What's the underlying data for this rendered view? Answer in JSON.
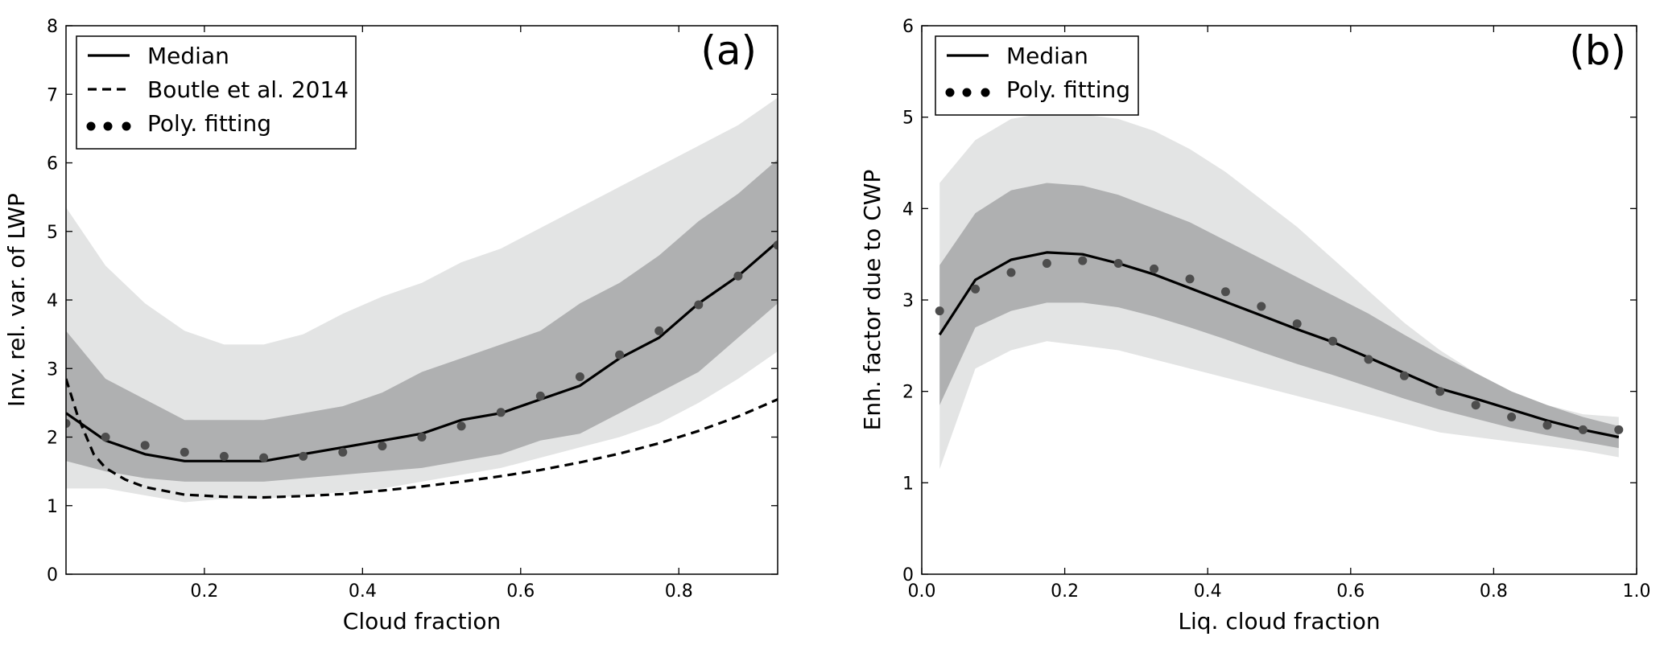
{
  "chart_data": [
    {
      "type": "line",
      "panel_label": "(a)",
      "xlabel": "Cloud fraction",
      "ylabel": "Inv. rel. var. of LWP",
      "xlim": [
        0.025,
        0.925
      ],
      "ylim": [
        0,
        8
      ],
      "xticks": [
        0.2,
        0.4,
        0.6,
        0.8
      ],
      "xtick_labels": [
        "0.2",
        "0.4",
        "0.6",
        "0.8"
      ],
      "yticks": [
        0,
        1,
        2,
        3,
        4,
        5,
        6,
        7,
        8
      ],
      "ytick_labels": [
        "0",
        "1",
        "2",
        "3",
        "4",
        "5",
        "6",
        "7",
        "8"
      ],
      "grid": false,
      "legend_position": "upper-left",
      "legend": [
        "Median",
        "Boutle et al. 2014",
        "Poly. fitting"
      ],
      "bands": [
        {
          "color": "#e3e4e4",
          "x": [
            0.025,
            0.075,
            0.125,
            0.175,
            0.225,
            0.275,
            0.325,
            0.375,
            0.425,
            0.475,
            0.525,
            0.575,
            0.625,
            0.675,
            0.725,
            0.775,
            0.825,
            0.875,
            0.925
          ],
          "lower": [
            1.25,
            1.25,
            1.15,
            1.05,
            1.1,
            1.1,
            1.15,
            1.2,
            1.25,
            1.35,
            1.45,
            1.55,
            1.7,
            1.85,
            2.0,
            2.2,
            2.5,
            2.85,
            3.25
          ],
          "upper": [
            5.35,
            4.5,
            3.95,
            3.55,
            3.35,
            3.35,
            3.5,
            3.8,
            4.05,
            4.25,
            4.55,
            4.75,
            5.05,
            5.35,
            5.65,
            5.95,
            6.25,
            6.55,
            6.95
          ]
        },
        {
          "color": "#afb0b1",
          "x": [
            0.025,
            0.075,
            0.125,
            0.175,
            0.225,
            0.275,
            0.325,
            0.375,
            0.425,
            0.475,
            0.525,
            0.575,
            0.625,
            0.675,
            0.725,
            0.775,
            0.825,
            0.875,
            0.925
          ],
          "lower": [
            1.65,
            1.5,
            1.4,
            1.35,
            1.35,
            1.35,
            1.4,
            1.45,
            1.5,
            1.55,
            1.65,
            1.75,
            1.95,
            2.05,
            2.35,
            2.65,
            2.95,
            3.45,
            3.95
          ],
          "upper": [
            3.55,
            2.85,
            2.55,
            2.25,
            2.25,
            2.25,
            2.35,
            2.45,
            2.65,
            2.95,
            3.15,
            3.35,
            3.55,
            3.95,
            4.25,
            4.65,
            5.15,
            5.55,
            6.05
          ]
        }
      ],
      "series": [
        {
          "name": "Median",
          "style": "solid",
          "x": [
            0.025,
            0.075,
            0.125,
            0.175,
            0.225,
            0.275,
            0.325,
            0.375,
            0.425,
            0.475,
            0.525,
            0.575,
            0.625,
            0.675,
            0.725,
            0.775,
            0.825,
            0.875,
            0.925
          ],
          "y": [
            2.35,
            1.95,
            1.75,
            1.65,
            1.65,
            1.65,
            1.75,
            1.85,
            1.95,
            2.05,
            2.25,
            2.35,
            2.55,
            2.75,
            3.15,
            3.45,
            3.95,
            4.35,
            4.85
          ]
        },
        {
          "name": "Boutle et al. 2014",
          "style": "dashed",
          "x": [
            0.025,
            0.04,
            0.06,
            0.075,
            0.1,
            0.125,
            0.175,
            0.225,
            0.275,
            0.325,
            0.375,
            0.425,
            0.475,
            0.525,
            0.575,
            0.625,
            0.675,
            0.725,
            0.775,
            0.825,
            0.875,
            0.925
          ],
          "y": [
            2.85,
            2.3,
            1.75,
            1.55,
            1.38,
            1.27,
            1.16,
            1.13,
            1.12,
            1.14,
            1.17,
            1.22,
            1.28,
            1.35,
            1.43,
            1.52,
            1.63,
            1.76,
            1.91,
            2.09,
            2.3,
            2.55
          ]
        },
        {
          "name": "Poly. fitting",
          "style": "dots",
          "color": "#4d4d4d",
          "x": [
            0.025,
            0.075,
            0.125,
            0.175,
            0.225,
            0.275,
            0.325,
            0.375,
            0.425,
            0.475,
            0.525,
            0.575,
            0.625,
            0.675,
            0.725,
            0.775,
            0.825,
            0.875,
            0.925
          ],
          "y": [
            2.2,
            2.0,
            1.88,
            1.78,
            1.72,
            1.7,
            1.72,
            1.78,
            1.87,
            2.0,
            2.16,
            2.36,
            2.6,
            2.88,
            3.2,
            3.55,
            3.93,
            4.35,
            4.8
          ]
        }
      ]
    },
    {
      "type": "line",
      "panel_label": "(b)",
      "xlabel": "Liq. cloud fraction",
      "ylabel": "Enh. factor due to CWP",
      "xlim": [
        0,
        1
      ],
      "ylim": [
        0,
        6
      ],
      "xticks": [
        0,
        0.2,
        0.4,
        0.6,
        0.8,
        1.0
      ],
      "xtick_labels": [
        "0.0",
        "0.2",
        "0.4",
        "0.6",
        "0.8",
        "1.0"
      ],
      "yticks": [
        0,
        1,
        2,
        3,
        4,
        5,
        6
      ],
      "ytick_labels": [
        "0",
        "1",
        "2",
        "3",
        "4",
        "5",
        "6"
      ],
      "grid": false,
      "legend_position": "upper-left",
      "legend": [
        "Median",
        "Poly. fitting"
      ],
      "bands": [
        {
          "color": "#e3e4e4",
          "x": [
            0.025,
            0.075,
            0.125,
            0.175,
            0.225,
            0.275,
            0.325,
            0.375,
            0.425,
            0.475,
            0.525,
            0.575,
            0.625,
            0.675,
            0.725,
            0.775,
            0.825,
            0.875,
            0.925,
            0.975
          ],
          "lower": [
            1.15,
            2.25,
            2.45,
            2.55,
            2.5,
            2.45,
            2.35,
            2.25,
            2.15,
            2.05,
            1.95,
            1.85,
            1.75,
            1.65,
            1.55,
            1.5,
            1.45,
            1.4,
            1.35,
            1.28
          ],
          "upper": [
            4.28,
            4.75,
            4.98,
            5.05,
            5.03,
            4.98,
            4.85,
            4.65,
            4.4,
            4.1,
            3.8,
            3.45,
            3.1,
            2.75,
            2.45,
            2.2,
            2.0,
            1.85,
            1.75,
            1.72
          ]
        },
        {
          "color": "#afb0b1",
          "x": [
            0.025,
            0.075,
            0.125,
            0.175,
            0.225,
            0.275,
            0.325,
            0.375,
            0.425,
            0.475,
            0.525,
            0.575,
            0.625,
            0.675,
            0.725,
            0.775,
            0.825,
            0.875,
            0.925,
            0.975
          ],
          "lower": [
            1.85,
            2.7,
            2.88,
            2.97,
            2.97,
            2.92,
            2.82,
            2.7,
            2.57,
            2.43,
            2.3,
            2.18,
            2.05,
            1.92,
            1.8,
            1.7,
            1.6,
            1.52,
            1.45,
            1.38
          ],
          "upper": [
            3.38,
            3.95,
            4.2,
            4.28,
            4.25,
            4.15,
            4.0,
            3.85,
            3.65,
            3.45,
            3.25,
            3.05,
            2.85,
            2.62,
            2.4,
            2.2,
            2.0,
            1.85,
            1.72,
            1.62
          ]
        }
      ],
      "series": [
        {
          "name": "Median",
          "style": "solid",
          "x": [
            0.025,
            0.075,
            0.125,
            0.175,
            0.225,
            0.275,
            0.325,
            0.375,
            0.425,
            0.475,
            0.525,
            0.575,
            0.625,
            0.675,
            0.725,
            0.775,
            0.825,
            0.875,
            0.925,
            0.975
          ],
          "y": [
            2.62,
            3.22,
            3.44,
            3.52,
            3.5,
            3.4,
            3.28,
            3.13,
            2.98,
            2.83,
            2.68,
            2.54,
            2.37,
            2.2,
            2.03,
            1.92,
            1.8,
            1.68,
            1.58,
            1.5
          ]
        },
        {
          "name": "Poly. fitting",
          "style": "dots",
          "color": "#4d4d4d",
          "x": [
            0.025,
            0.075,
            0.125,
            0.175,
            0.225,
            0.275,
            0.325,
            0.375,
            0.425,
            0.475,
            0.525,
            0.575,
            0.625,
            0.675,
            0.725,
            0.775,
            0.825,
            0.875,
            0.925,
            0.975
          ],
          "y": [
            2.88,
            3.12,
            3.3,
            3.4,
            3.43,
            3.4,
            3.34,
            3.23,
            3.09,
            2.93,
            2.74,
            2.55,
            2.35,
            2.17,
            2.0,
            1.85,
            1.72,
            1.63,
            1.58,
            1.58
          ]
        }
      ]
    }
  ]
}
